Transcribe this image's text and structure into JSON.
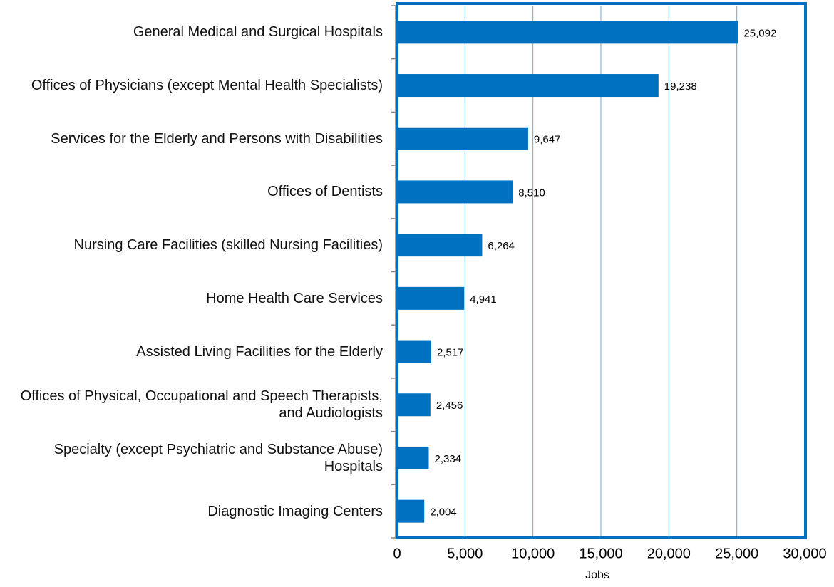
{
  "chart_data": {
    "type": "bar",
    "orientation": "horizontal",
    "x_label": "Jobs",
    "categories": [
      "General Medical and Surgical Hospitals",
      "Offices of Physicians (except Mental Health Specialists)",
      "Services for the Elderly and Persons with Disabilities",
      "Offices of Dentists",
      "Nursing Care Facilities (skilled Nursing Facilities)",
      "Home Health Care Services",
      "Assisted Living Facilities for the Elderly",
      "Offices of Physical, Occupational and Speech Therapists, and Audiologists",
      "Specialty (except Psychiatric and Substance Abuse) Hospitals",
      "Diagnostic Imaging Centers"
    ],
    "values": [
      25092,
      19238,
      9647,
      8510,
      6264,
      4941,
      2517,
      2456,
      2334,
      2004
    ],
    "value_labels": [
      "25,092",
      "19,238",
      "9,647",
      "8,510",
      "6,264",
      "4,941",
      "2,517",
      "2,456",
      "2,334",
      "2,004"
    ],
    "color": "#0070c0",
    "xlim": [
      0,
      30000
    ],
    "xticks": [
      0,
      {
        "value": 5000,
        "label": "5,000"
      },
      {
        "value": 10000,
        "label": "10,000"
      },
      {
        "value": 15000,
        "label": "15,000"
      },
      {
        "value": 20000,
        "label": "20,000"
      },
      {
        "value": 25000,
        "label": "25,000"
      },
      {
        "value": 30000,
        "label": "30,000"
      }
    ],
    "grid": true
  }
}
